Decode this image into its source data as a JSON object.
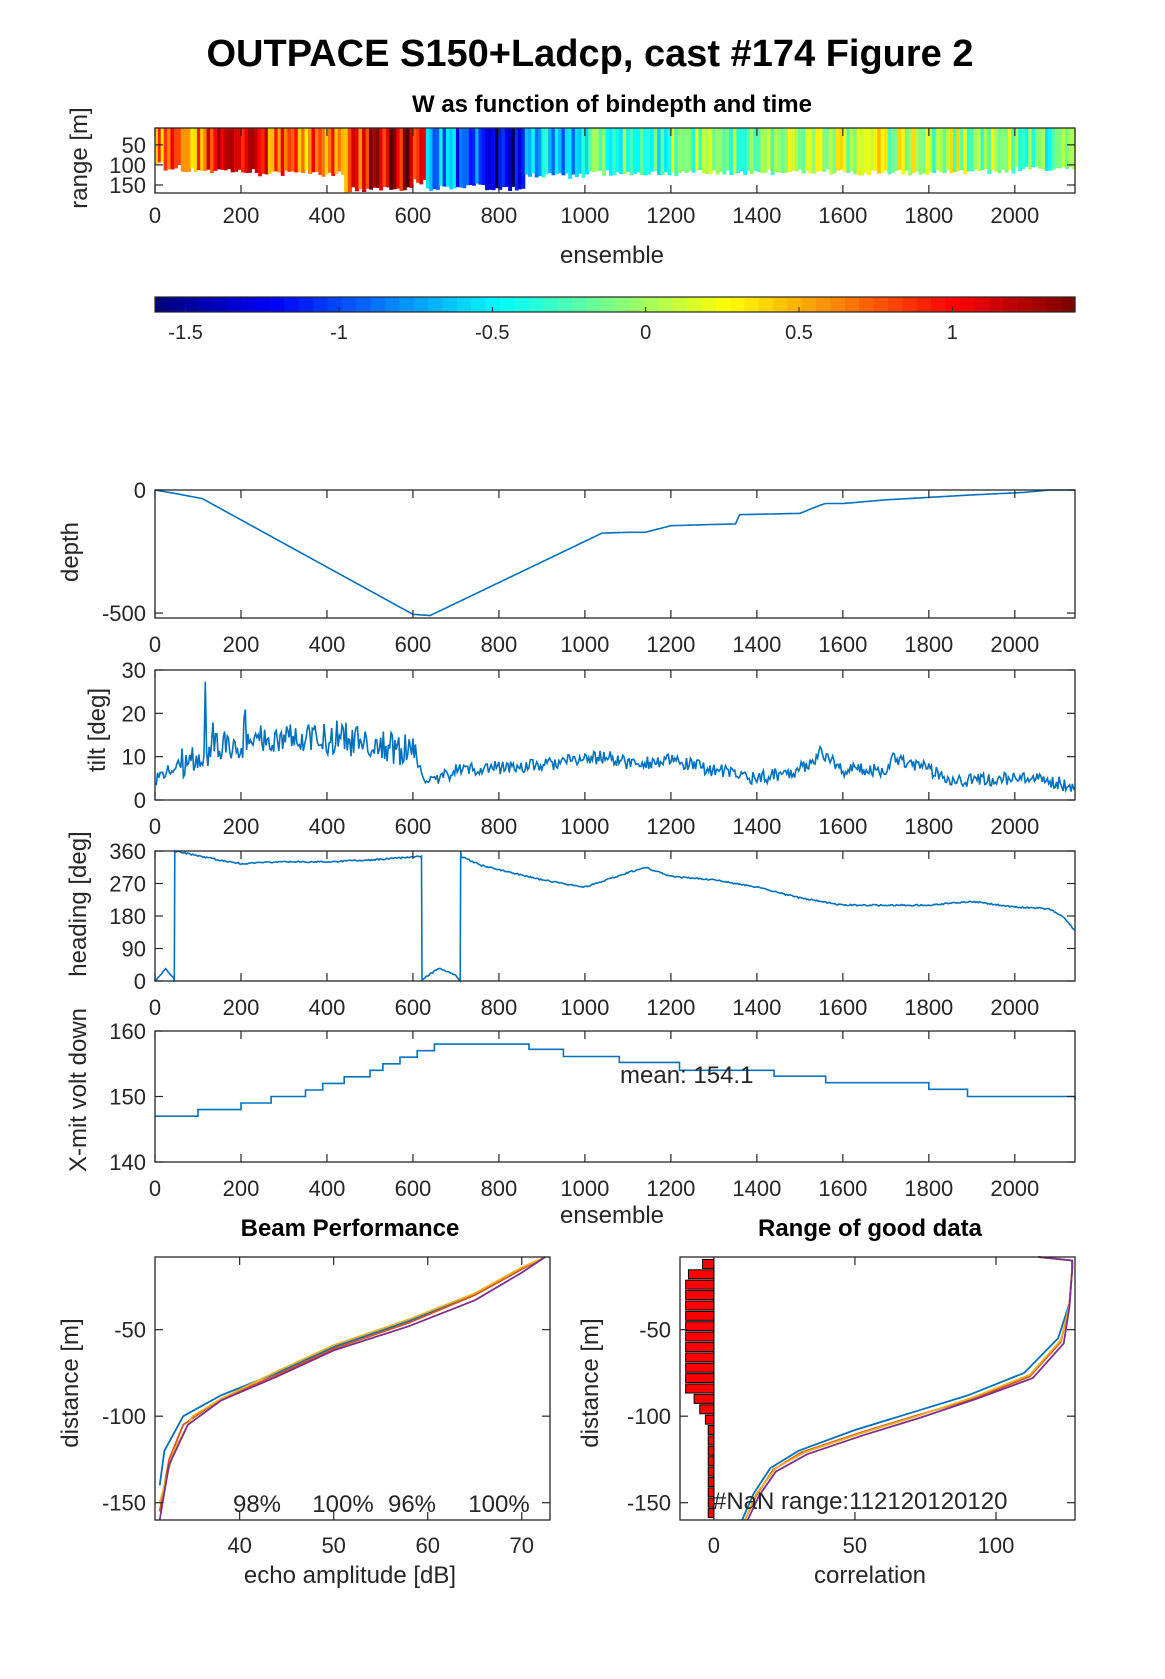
{
  "title": "OUTPACE S150+Ladcp, cast #174 Figure 2",
  "colors": {
    "line": "#0072BD",
    "beam": [
      "#0072BD",
      "#D95319",
      "#EDB120",
      "#7E2F8E"
    ],
    "bar_fill": "#FF0000",
    "colormap": "jet"
  },
  "chart_data": [
    {
      "type": "heatmap",
      "title": "W as function of bindepth and time",
      "xlabel": "ensemble",
      "ylabel": "range [m]",
      "xlim": [
        0,
        2140
      ],
      "ylim": [
        170,
        8
      ],
      "xticks": [
        "0",
        "200",
        "400",
        "600",
        "800",
        "1000",
        "1200",
        "1400",
        "1600",
        "1800",
        "2000"
      ],
      "yticks": [
        "50",
        "100",
        "150"
      ],
      "colorbar": {
        "lim": [
          -1.6,
          1.4
        ],
        "ticks": [
          "-1.5",
          "-1",
          "-0.5",
          "0",
          "0.5",
          "1"
        ]
      },
      "segments": [
        {
          "x": [
            0,
            20
          ],
          "w": 0.55,
          "bottom": 100
        },
        {
          "x": [
            20,
            60
          ],
          "w": 0.7,
          "bottom": 115
        },
        {
          "x": [
            60,
            120
          ],
          "w": 0.6,
          "bottom": 120
        },
        {
          "x": [
            120,
            240
          ],
          "w": 1.1,
          "bottom": 125
        },
        {
          "x": [
            240,
            300
          ],
          "w": 0.85,
          "bottom": 130
        },
        {
          "x": [
            300,
            380
          ],
          "w": 0.7,
          "bottom": 125
        },
        {
          "x": [
            380,
            440
          ],
          "w": 0.75,
          "bottom": 130
        },
        {
          "x": [
            440,
            490
          ],
          "w": 0.8,
          "bottom": 170
        },
        {
          "x": [
            490,
            600
          ],
          "w": 1.15,
          "bottom": 165
        },
        {
          "x": [
            600,
            630
          ],
          "w": 0.75,
          "bottom": 150
        },
        {
          "x": [
            630,
            700
          ],
          "w": -0.8,
          "bottom": 165
        },
        {
          "x": [
            700,
            760
          ],
          "w": -1.0,
          "bottom": 160
        },
        {
          "x": [
            760,
            860
          ],
          "w": -1.4,
          "bottom": 165
        },
        {
          "x": [
            860,
            1000
          ],
          "w": -0.6,
          "bottom": 135
        },
        {
          "x": [
            1000,
            1200
          ],
          "w": -0.3,
          "bottom": 128
        },
        {
          "x": [
            1200,
            1400
          ],
          "w": -0.1,
          "bottom": 128
        },
        {
          "x": [
            1400,
            1600
          ],
          "w": 0.05,
          "bottom": 125
        },
        {
          "x": [
            1600,
            1800
          ],
          "w": 0.1,
          "bottom": 128
        },
        {
          "x": [
            1800,
            2000
          ],
          "w": 0.0,
          "bottom": 125
        },
        {
          "x": [
            2000,
            2140
          ],
          "w": -0.2,
          "bottom": 118
        }
      ]
    },
    {
      "type": "line",
      "ylabel": "depth",
      "xlim": [
        0,
        2140
      ],
      "ylim": [
        -520,
        0
      ],
      "xticks": [
        "0",
        "200",
        "400",
        "600",
        "800",
        "1000",
        "1200",
        "1400",
        "1600",
        "1800",
        "2000"
      ],
      "yticks": [
        "0",
        "-500"
      ],
      "x": [
        0,
        50,
        110,
        600,
        640,
        1040,
        1100,
        1140,
        1200,
        1300,
        1350,
        1360,
        1420,
        1500,
        1550,
        1560,
        1600,
        1700,
        1800,
        1900,
        2020,
        2080,
        2140
      ],
      "y": [
        0,
        -15,
        -35,
        -505,
        -510,
        -175,
        -172,
        -172,
        -145,
        -140,
        -138,
        -100,
        -98,
        -95,
        -60,
        -55,
        -55,
        -40,
        -30,
        -20,
        -10,
        0,
        0
      ]
    },
    {
      "type": "line",
      "ylabel": "tilt [deg]",
      "xlim": [
        0,
        2140
      ],
      "ylim": [
        0,
        30
      ],
      "xticks": [
        "0",
        "200",
        "400",
        "600",
        "800",
        "1000",
        "1200",
        "1400",
        "1600",
        "1800",
        "2000"
      ],
      "yticks": [
        "0",
        "10",
        "20",
        "30"
      ],
      "x": [
        0,
        60,
        150,
        300,
        450,
        600,
        620,
        650,
        700,
        800,
        900,
        1000,
        1050,
        1100,
        1200,
        1300,
        1400,
        1500,
        1550,
        1600,
        1700,
        1720,
        1800,
        1850,
        1900,
        2000,
        2100,
        2140
      ],
      "y": [
        5,
        8,
        12,
        15,
        14,
        11,
        6,
        4,
        7,
        7.5,
        8,
        9.5,
        10,
        8.5,
        9,
        7,
        5,
        7,
        11,
        7,
        7,
        10,
        7,
        5,
        4.5,
        5,
        4,
        3
      ]
    },
    {
      "type": "line",
      "ylabel": "heading [deg]",
      "xlim": [
        0,
        2140
      ],
      "ylim": [
        0,
        360
      ],
      "xticks": [
        "0",
        "200",
        "400",
        "600",
        "800",
        "1000",
        "1200",
        "1400",
        "1600",
        "1800",
        "2000"
      ],
      "yticks": [
        "0",
        "90",
        "180",
        "270",
        "360"
      ],
      "x": [
        0,
        25,
        44,
        45,
        46,
        150,
        200,
        300,
        400,
        500,
        620,
        621,
        622,
        660,
        700,
        710,
        711,
        712,
        760,
        900,
        1000,
        1050,
        1100,
        1140,
        1200,
        1250,
        1300,
        1400,
        1500,
        1600,
        1700,
        1800,
        1900,
        2000,
        2080,
        2110,
        2140
      ],
      "y": [
        0,
        35,
        5,
        0,
        360,
        335,
        325,
        330,
        330,
        335,
        345,
        0,
        5,
        35,
        15,
        0,
        360,
        345,
        320,
        280,
        260,
        280,
        300,
        315,
        290,
        285,
        280,
        260,
        230,
        210,
        210,
        210,
        220,
        205,
        200,
        180,
        140
      ]
    },
    {
      "type": "line",
      "ylabel": "X-mit volt down",
      "xlabel": "ensemble",
      "xlim": [
        0,
        2140
      ],
      "ylim": [
        140,
        160
      ],
      "xticks": [
        "0",
        "200",
        "400",
        "600",
        "800",
        "1000",
        "1200",
        "1400",
        "1600",
        "1800",
        "2000"
      ],
      "yticks": [
        "140",
        "150",
        "160"
      ],
      "annotation": "mean: 154.1",
      "steps": [
        [
          0,
          147
        ],
        [
          100,
          148
        ],
        [
          200,
          149
        ],
        [
          270,
          150
        ],
        [
          350,
          151
        ],
        [
          390,
          152
        ],
        [
          440,
          153
        ],
        [
          500,
          154
        ],
        [
          530,
          155
        ],
        [
          570,
          156
        ],
        [
          610,
          157
        ],
        [
          650,
          158
        ],
        [
          870,
          157.2
        ],
        [
          950,
          156.1
        ],
        [
          1080,
          155.2
        ],
        [
          1220,
          154.0
        ],
        [
          1440,
          153.1
        ],
        [
          1560,
          152.1
        ],
        [
          1800,
          151.1
        ],
        [
          1890,
          150.0
        ],
        [
          2140,
          149.5
        ]
      ]
    },
    {
      "type": "line",
      "title": "Beam Performance",
      "xlabel": "echo amplitude [dB]",
      "ylabel": "distance [m]",
      "xlim": [
        31,
        73
      ],
      "ylim": [
        -160,
        -8
      ],
      "xticks": [
        "40",
        "50",
        "60",
        "70"
      ],
      "yticks": [
        "-50",
        "-100",
        "-150"
      ],
      "annotations": [
        "98%",
        "100%",
        "96%",
        "100%"
      ],
      "series": [
        {
          "x": [
            31.5,
            32,
            34,
            38,
            44,
            50,
            58,
            65,
            70,
            72.5
          ],
          "y": [
            -140,
            -120,
            -100,
            -88,
            -75,
            -60,
            -45,
            -30,
            -15,
            -8
          ]
        },
        {
          "x": [
            31.5,
            32.5,
            34,
            38,
            44,
            50,
            58,
            65,
            70,
            72.5
          ],
          "y": [
            -155,
            -125,
            -105,
            -90,
            -76,
            -61,
            -46,
            -30,
            -15,
            -8
          ]
        },
        {
          "x": [
            31.5,
            33,
            35,
            38,
            44,
            50,
            58,
            65,
            70,
            72.5
          ],
          "y": [
            -150,
            -120,
            -100,
            -90,
            -74,
            -59,
            -44,
            -29,
            -14,
            -8
          ]
        },
        {
          "x": [
            31.5,
            32.5,
            34.5,
            38,
            44,
            50,
            58,
            65,
            70,
            72.5
          ],
          "y": [
            -160,
            -128,
            -105,
            -91,
            -77,
            -62,
            -48,
            -33,
            -17,
            -8
          ]
        }
      ]
    },
    {
      "type": "line",
      "title": "Range of good data",
      "xlabel": "correlation",
      "ylabel": "distance [m]",
      "xlim": [
        -12,
        128
      ],
      "ylim": [
        -160,
        -8
      ],
      "xticks": [
        "0",
        "50",
        "100"
      ],
      "yticks": [
        "-50",
        "-100",
        "-150"
      ],
      "annotation": "#NaN range:112120120120",
      "bars": [
        {
          "y": -12,
          "len": 4
        },
        {
          "y": -18,
          "len": 9
        },
        {
          "y": -24,
          "len": 10
        },
        {
          "y": -30,
          "len": 10
        },
        {
          "y": -36,
          "len": 10
        },
        {
          "y": -42,
          "len": 10
        },
        {
          "y": -48,
          "len": 10
        },
        {
          "y": -54,
          "len": 10
        },
        {
          "y": -60,
          "len": 10
        },
        {
          "y": -66,
          "len": 10
        },
        {
          "y": -72,
          "len": 10
        },
        {
          "y": -78,
          "len": 10
        },
        {
          "y": -84,
          "len": 10
        },
        {
          "y": -90,
          "len": 7
        },
        {
          "y": -96,
          "len": 5
        },
        {
          "y": -102,
          "len": 3
        },
        {
          "y": -108,
          "len": 2
        },
        {
          "y": -114,
          "len": 2
        },
        {
          "y": -120,
          "len": 2
        },
        {
          "y": -126,
          "len": 2
        },
        {
          "y": -132,
          "len": 2
        },
        {
          "y": -138,
          "len": 2
        },
        {
          "y": -144,
          "len": 2
        },
        {
          "y": -150,
          "len": 2
        },
        {
          "y": -156,
          "len": 2
        }
      ],
      "series": [
        {
          "x": [
            10,
            14,
            20,
            30,
            50,
            70,
            90,
            110,
            122,
            126,
            127,
            127,
            115
          ],
          "y": [
            -160,
            -145,
            -130,
            -120,
            -108,
            -98,
            -88,
            -75,
            -55,
            -35,
            -15,
            -10,
            -8
          ]
        },
        {
          "x": [
            11,
            15,
            21,
            31,
            51,
            71,
            92,
            112,
            123,
            126,
            127,
            127,
            115
          ],
          "y": [
            -160,
            -146,
            -131,
            -121,
            -110,
            -100,
            -90,
            -77,
            -57,
            -36,
            -15,
            -10,
            -8
          ]
        },
        {
          "x": [
            11,
            15,
            22,
            32,
            52,
            72,
            92,
            112,
            123,
            126,
            127,
            127,
            115
          ],
          "y": [
            -160,
            -145,
            -130,
            -121,
            -110,
            -100,
            -89,
            -76,
            -56,
            -36,
            -15,
            -10,
            -8
          ]
        },
        {
          "x": [
            12,
            16,
            22,
            33,
            53,
            73,
            93,
            113,
            124,
            126,
            127,
            127,
            115
          ],
          "y": [
            -160,
            -146,
            -132,
            -122,
            -111,
            -101,
            -90,
            -78,
            -58,
            -37,
            -15,
            -10,
            -8
          ]
        }
      ]
    }
  ]
}
